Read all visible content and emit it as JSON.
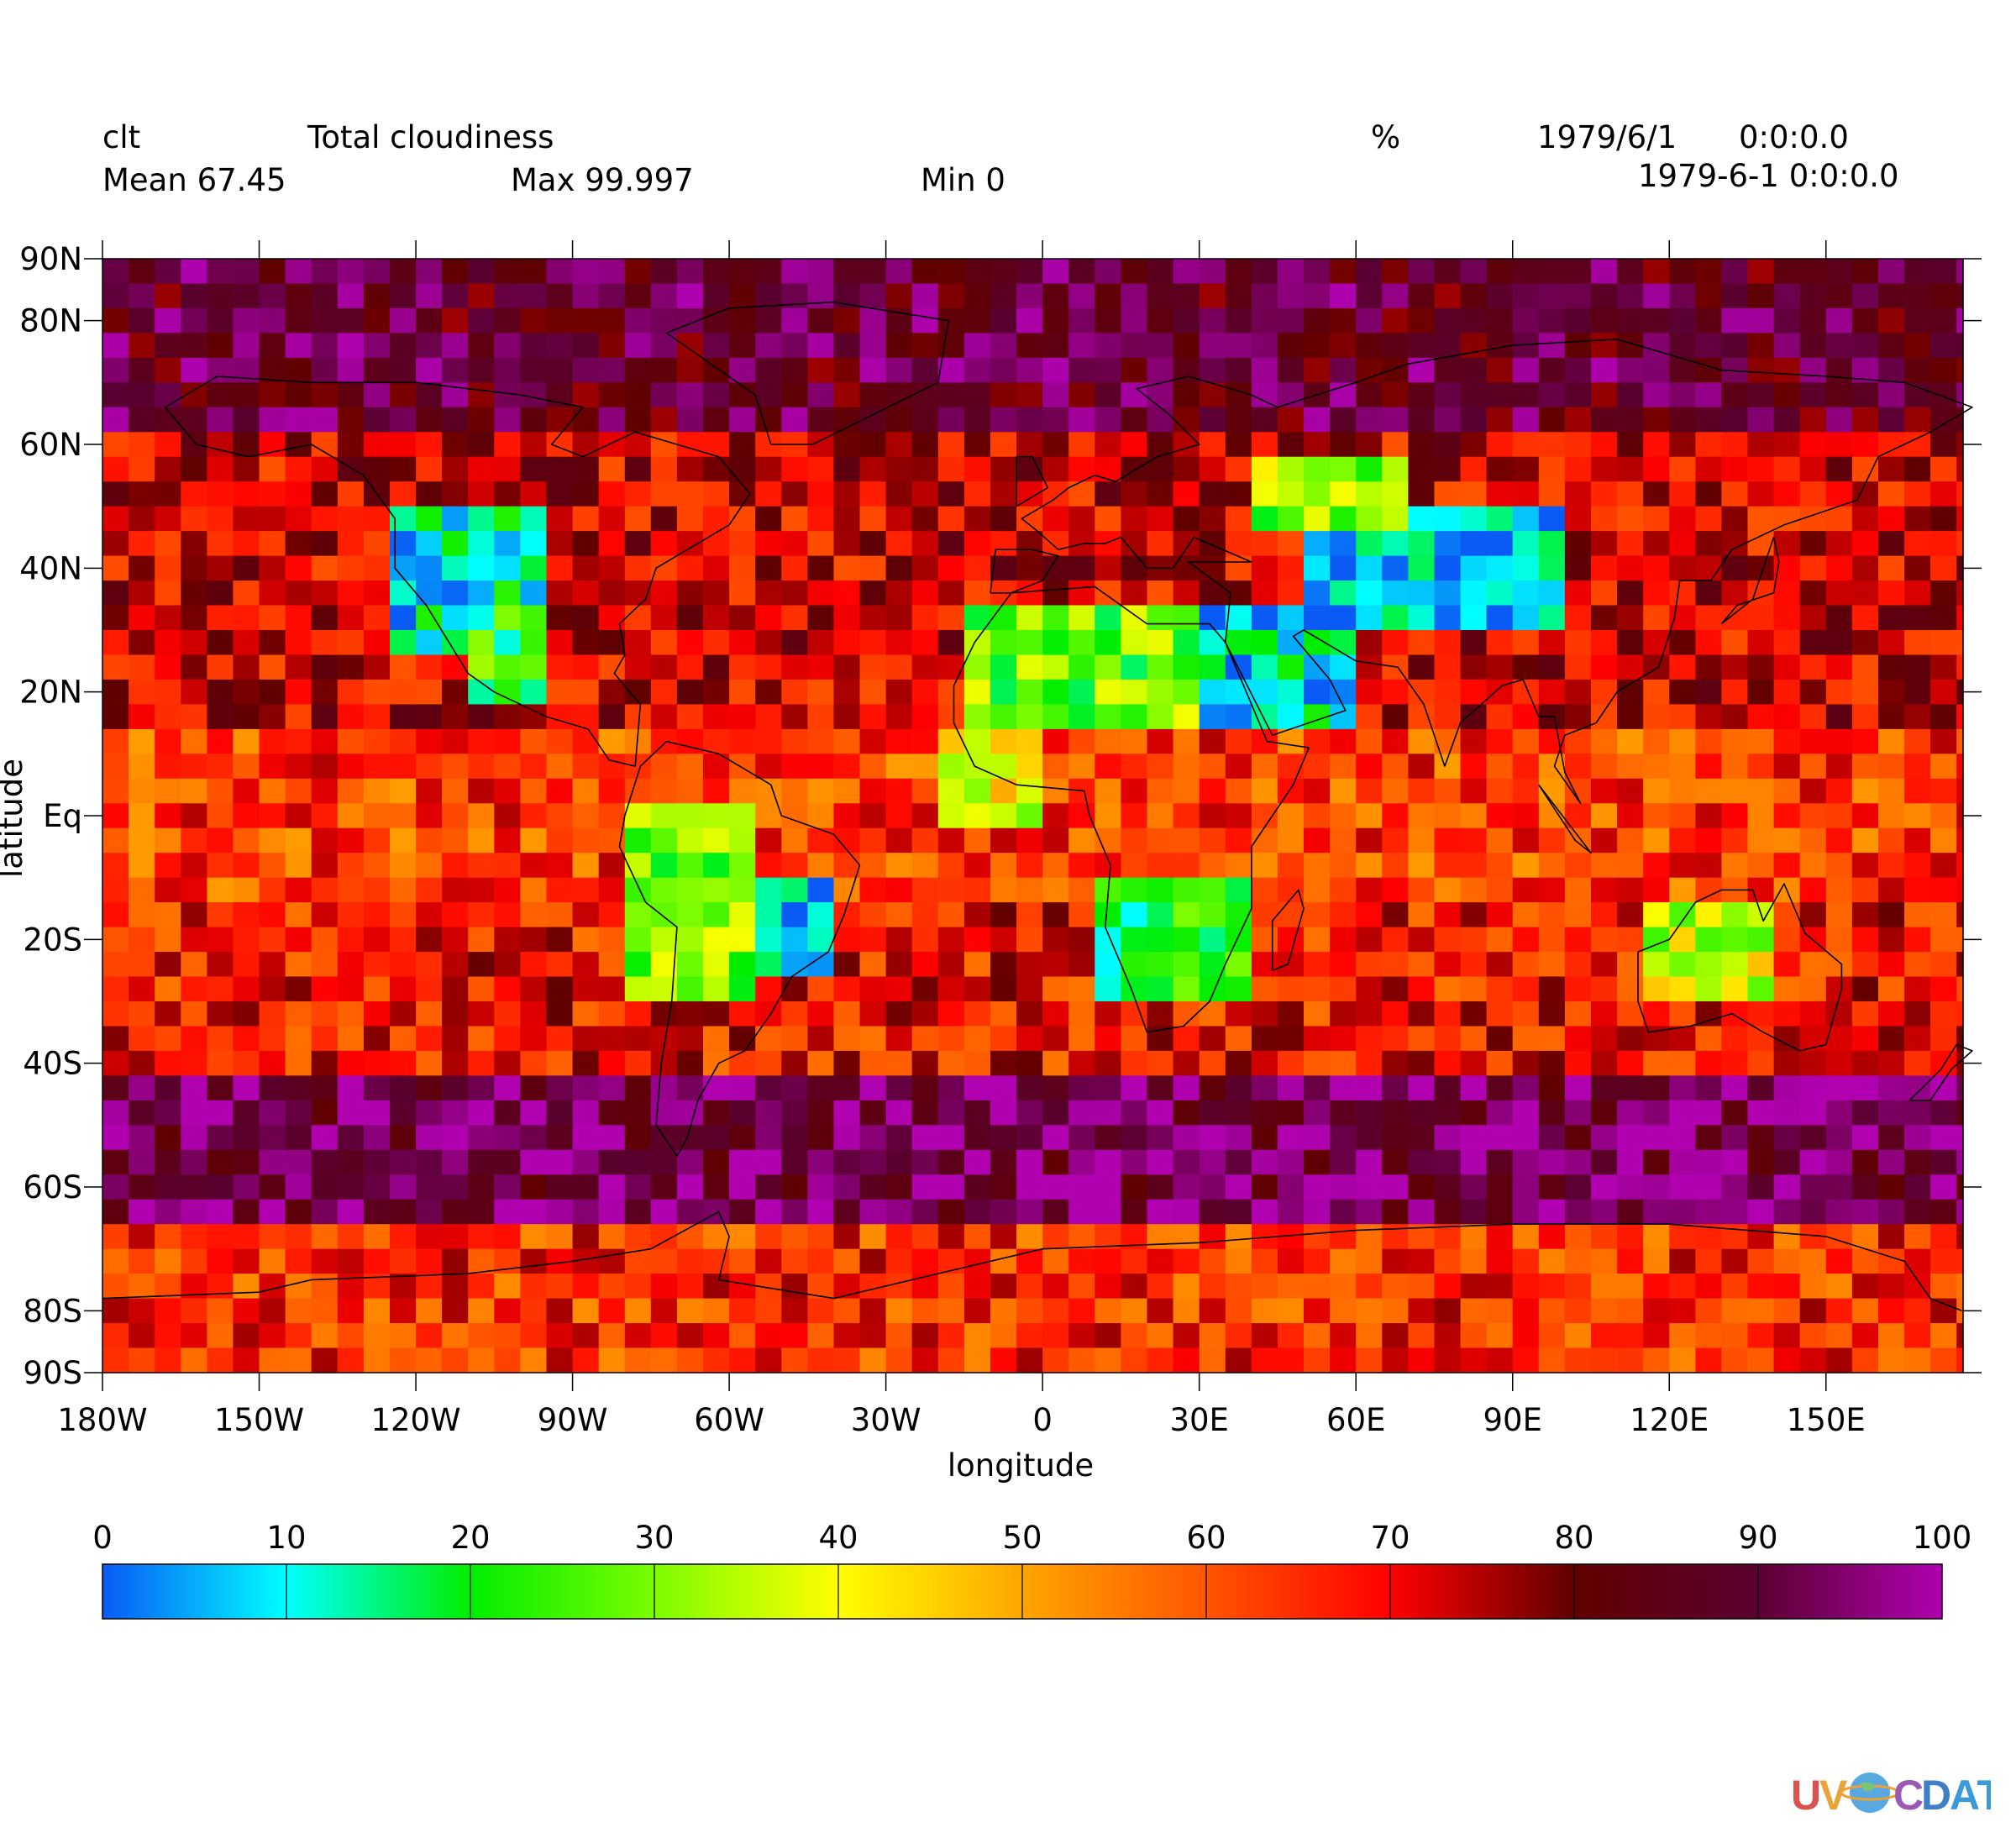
{
  "header": {
    "variable": "clt",
    "long_name": "Total cloudiness",
    "units": "%",
    "date": "1979/6/1",
    "time": "0:0:0.0",
    "datetime": "1979-6-1 0:0:0.0",
    "mean": "Mean 67.45",
    "max": "Max 99.997",
    "min": "Min 0"
  },
  "chart_data": {
    "type": "heatmap",
    "title": "Total cloudiness",
    "xlabel": "longitude",
    "ylabel": "latitude",
    "x_ticks": [
      "180W",
      "150W",
      "120W",
      "90W",
      "60W",
      "30W",
      "0",
      "30E",
      "60E",
      "90E",
      "120E",
      "150E"
    ],
    "x_tick_values": [
      -180,
      -150,
      -120,
      -90,
      -60,
      -30,
      0,
      30,
      60,
      90,
      120,
      150
    ],
    "y_ticks": [
      "90N",
      "80N",
      "60N",
      "40N",
      "20N",
      "Eq",
      "20S",
      "40S",
      "60S",
      "80S",
      "90S"
    ],
    "y_tick_values": [
      90,
      80,
      60,
      40,
      20,
      0,
      -20,
      -40,
      -60,
      -80,
      -90
    ],
    "xlim": [
      -180,
      176.25
    ],
    "ylim": [
      -90,
      90
    ],
    "grid_dlon": 5,
    "grid_dlat": 4,
    "colorbar": {
      "ticks": [
        "0",
        "10",
        "20",
        "30",
        "40",
        "50",
        "60",
        "70",
        "80",
        "90",
        "100"
      ],
      "range": [
        0,
        100
      ],
      "colors": [
        "#0a5af5",
        "#00ffff",
        "#00ee00",
        "#7cfc00",
        "#ffff00",
        "#ffa500",
        "#ff5500",
        "#ff0000",
        "#600000",
        "#5a0030",
        "#b000b0"
      ]
    },
    "approximate_regions": [
      {
        "lon": [
          -180,
          180
        ],
        "lat": [
          62,
          90
        ],
        "value": 88
      },
      {
        "lon": [
          -180,
          180
        ],
        "lat": [
          -66,
          -44
        ],
        "value": 92
      },
      {
        "lon": [
          -180,
          180
        ],
        "lat": [
          -90,
          -66
        ],
        "value": 65
      },
      {
        "lon": [
          -125,
          -95
        ],
        "lat": [
          25,
          50
        ],
        "value": 12
      },
      {
        "lon": [
          -110,
          -95
        ],
        "lat": [
          18,
          35
        ],
        "value": 22
      },
      {
        "lon": [
          -65,
          -40
        ],
        "lat": [
          -25,
          -10
        ],
        "value": 8
      },
      {
        "lon": [
          -80,
          -55
        ],
        "lat": [
          -30,
          0
        ],
        "value": 30
      },
      {
        "lon": [
          -15,
          35
        ],
        "lat": [
          15,
          32
        ],
        "value": 28
      },
      {
        "lon": [
          10,
          40
        ],
        "lat": [
          -28,
          -10
        ],
        "value": 18
      },
      {
        "lon": [
          30,
          60
        ],
        "lat": [
          15,
          35
        ],
        "value": 10
      },
      {
        "lon": [
          50,
          100
        ],
        "lat": [
          30,
          50
        ],
        "value": 6
      },
      {
        "lon": [
          40,
          70
        ],
        "lat": [
          45,
          58
        ],
        "value": 30
      },
      {
        "lon": [
          115,
          140
        ],
        "lat": [
          -30,
          -15
        ],
        "value": 35
      },
      {
        "lon": [
          -20,
          0
        ],
        "lat": [
          0,
          15
        ],
        "value": 40
      }
    ]
  }
}
